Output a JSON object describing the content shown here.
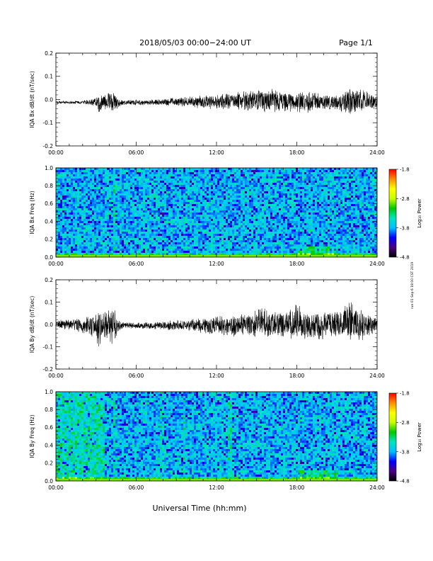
{
  "header": {
    "title": "2018/05/03  00:00−24:00 UT",
    "page": "Page 1/1"
  },
  "footer": {
    "xlabel": "Universal Time (hh:mm)",
    "side_note": "run 01 Sep 6 18:00 CST 2019"
  },
  "colorbar": {
    "label": "Log₁₀ Power",
    "ticks": [
      "-1.8",
      "-2.8",
      "-3.8",
      "-4.8"
    ],
    "stops": [
      "#000000",
      "#4b0082",
      "#0000ff",
      "#00bfff",
      "#00e5c0",
      "#00c800",
      "#c8ff00",
      "#ffff00",
      "#ff8c00",
      "#ff0000"
    ]
  },
  "chart_data": [
    {
      "type": "line",
      "ylabel": "IQA Bx dB/dt (nT/sec)",
      "x_ticks": [
        "00:00",
        "06:00",
        "12:00",
        "18:00",
        "24:00"
      ],
      "y_ticks": [
        "0.2",
        "0.1",
        "0.0",
        "-0.1",
        "-0.2"
      ],
      "xlim": [
        0,
        24
      ],
      "ylim": [
        -0.2,
        0.2
      ],
      "envelope": {
        "x_hours": [
          0,
          2,
          3,
          3.2,
          3.5,
          4,
          4.3,
          4.6,
          5,
          7,
          9,
          11,
          12,
          14,
          16,
          18,
          19,
          20,
          21,
          22,
          23,
          24
        ],
        "upper": [
          -0.005,
          -0.005,
          0.01,
          0.03,
          0.025,
          0.03,
          0.04,
          0.01,
          0.0,
          0.0,
          0.01,
          0.02,
          0.025,
          0.04,
          0.05,
          0.03,
          0.04,
          0.025,
          0.02,
          0.06,
          0.04,
          0.02
        ],
        "lower": [
          -0.02,
          -0.02,
          -0.03,
          -0.07,
          -0.04,
          -0.05,
          -0.07,
          -0.04,
          -0.025,
          -0.025,
          -0.03,
          -0.04,
          -0.045,
          -0.05,
          -0.06,
          -0.055,
          -0.06,
          -0.05,
          -0.05,
          -0.07,
          -0.05,
          -0.04
        ]
      }
    },
    {
      "type": "heatmap",
      "ylabel": "IQA Bx Freq (Hz)",
      "x_ticks": [
        "00:00",
        "06:00",
        "12:00",
        "18:00",
        "24:00"
      ],
      "y_ticks": [
        "1.0",
        "0.8",
        "0.6",
        "0.4",
        "0.2",
        "0.0"
      ],
      "xlim": [
        0,
        24
      ],
      "ylim": [
        0,
        1.0
      ],
      "zlim": [
        -4.8,
        -1.8
      ],
      "zlabel": "Log₁₀ Power",
      "features": {
        "vertical_bands_hours": [
          4.3
        ],
        "enhanced_low_freq_hours": [
          [
            18,
            21
          ]
        ]
      }
    },
    {
      "type": "line",
      "ylabel": "IQA By dB/dt (nT/sec)",
      "x_ticks": [
        "00:00",
        "06:00",
        "12:00",
        "18:00",
        "24:00"
      ],
      "y_ticks": [
        "0.2",
        "0.1",
        "0.0",
        "-0.1",
        "-0.2"
      ],
      "xlim": [
        0,
        24
      ],
      "ylim": [
        -0.2,
        0.2
      ],
      "envelope": {
        "x_hours": [
          0,
          1,
          2,
          3,
          3.2,
          3.5,
          4,
          4.3,
          4.6,
          5,
          7,
          9,
          11,
          12,
          14,
          15.5,
          17,
          18,
          19,
          20,
          21,
          22,
          23,
          24
        ],
        "upper": [
          0.02,
          0.03,
          0.03,
          0.05,
          0.07,
          0.05,
          0.08,
          0.09,
          0.02,
          0.01,
          0.01,
          0.02,
          0.03,
          0.04,
          0.05,
          0.08,
          0.06,
          0.1,
          0.05,
          0.07,
          0.06,
          0.12,
          0.06,
          0.03
        ],
        "lower": [
          -0.02,
          -0.03,
          -0.04,
          -0.07,
          -0.12,
          -0.06,
          -0.08,
          -0.12,
          -0.04,
          -0.02,
          -0.02,
          -0.03,
          -0.04,
          -0.05,
          -0.06,
          -0.06,
          -0.07,
          -0.08,
          -0.07,
          -0.08,
          -0.06,
          -0.1,
          -0.07,
          -0.04
        ]
      }
    },
    {
      "type": "heatmap",
      "ylabel": "IQA By Freq (Hz)",
      "x_ticks": [
        "00:00",
        "06:00",
        "12:00",
        "18:00",
        "24:00"
      ],
      "y_ticks": [
        "1.0",
        "0.8",
        "0.6",
        "0.4",
        "0.2",
        "0.0"
      ],
      "xlim": [
        0,
        24
      ],
      "ylim": [
        0,
        1.0
      ],
      "zlim": [
        -4.8,
        -1.8
      ],
      "zlabel": "Log₁₀ Power",
      "features": {
        "green_band_hours": [
          [
            0,
            3.5
          ]
        ],
        "vertical_bands_hours": [
          4.3,
          7.8,
          9.5,
          12.9
        ],
        "enhanced_low_freq_hours": [
          [
            18,
            21
          ]
        ]
      }
    }
  ]
}
